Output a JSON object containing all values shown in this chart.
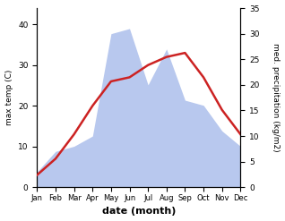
{
  "months": [
    "Jan",
    "Feb",
    "Mar",
    "Apr",
    "May",
    "Jun",
    "Jul",
    "Aug",
    "Sep",
    "Oct",
    "Nov",
    "Dec"
  ],
  "max_temp": [
    3,
    7,
    13,
    20,
    26,
    27,
    30,
    32,
    33,
    27,
    19,
    13
  ],
  "precipitation": [
    3,
    7,
    8,
    10,
    30,
    31,
    20,
    27,
    17,
    16,
    11,
    8
  ],
  "temp_color": "#cc2222",
  "precip_color_fill": "#b8c8ee",
  "left_ylabel": "max temp (C)",
  "right_ylabel": "med. precipitation (kg/m2)",
  "xlabel": "date (month)",
  "left_ylim": [
    0,
    44
  ],
  "right_ylim": [
    0,
    35
  ],
  "left_yticks": [
    0,
    10,
    20,
    30,
    40
  ],
  "right_yticks": [
    0,
    5,
    10,
    15,
    20,
    25,
    30,
    35
  ]
}
